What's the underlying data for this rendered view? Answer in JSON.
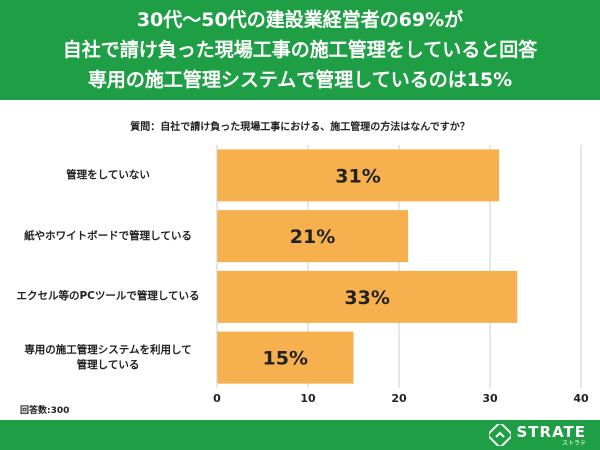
{
  "header": {
    "lines": [
      "30代〜50代の建設業経営者の69%が",
      "自社で請け負った現場工事の施工管理をしていると回答",
      "専用の施工管理システムで管理しているのは15%"
    ]
  },
  "question": "質問：自社で請け負った現場工事における、施工管理の方法はなんですか？",
  "footnote": "回答数:300",
  "logo": {
    "name": "STRATE",
    "kana": "ストラテ"
  },
  "colors": {
    "brand": "#1f9f45",
    "bar": "#f6b14e",
    "text": "#222222"
  },
  "chart_data": {
    "type": "bar",
    "orientation": "horizontal",
    "categories": [
      "管理をしていない",
      "紙やホワイトボードで管理している",
      "エクセル等のPCツールで管理している",
      "専用の施工管理システムを利用して\n管理している"
    ],
    "values": [
      31,
      21,
      33,
      15
    ],
    "data_labels": [
      "31%",
      "21%",
      "33%",
      "15%"
    ],
    "title": "質問：自社で請け負った現場工事における、施工管理の方法はなんですか？",
    "xlim": [
      0,
      40
    ],
    "xticks": [
      0,
      10,
      20,
      30,
      40
    ],
    "xlabel": "",
    "ylabel": "",
    "grid": true
  }
}
